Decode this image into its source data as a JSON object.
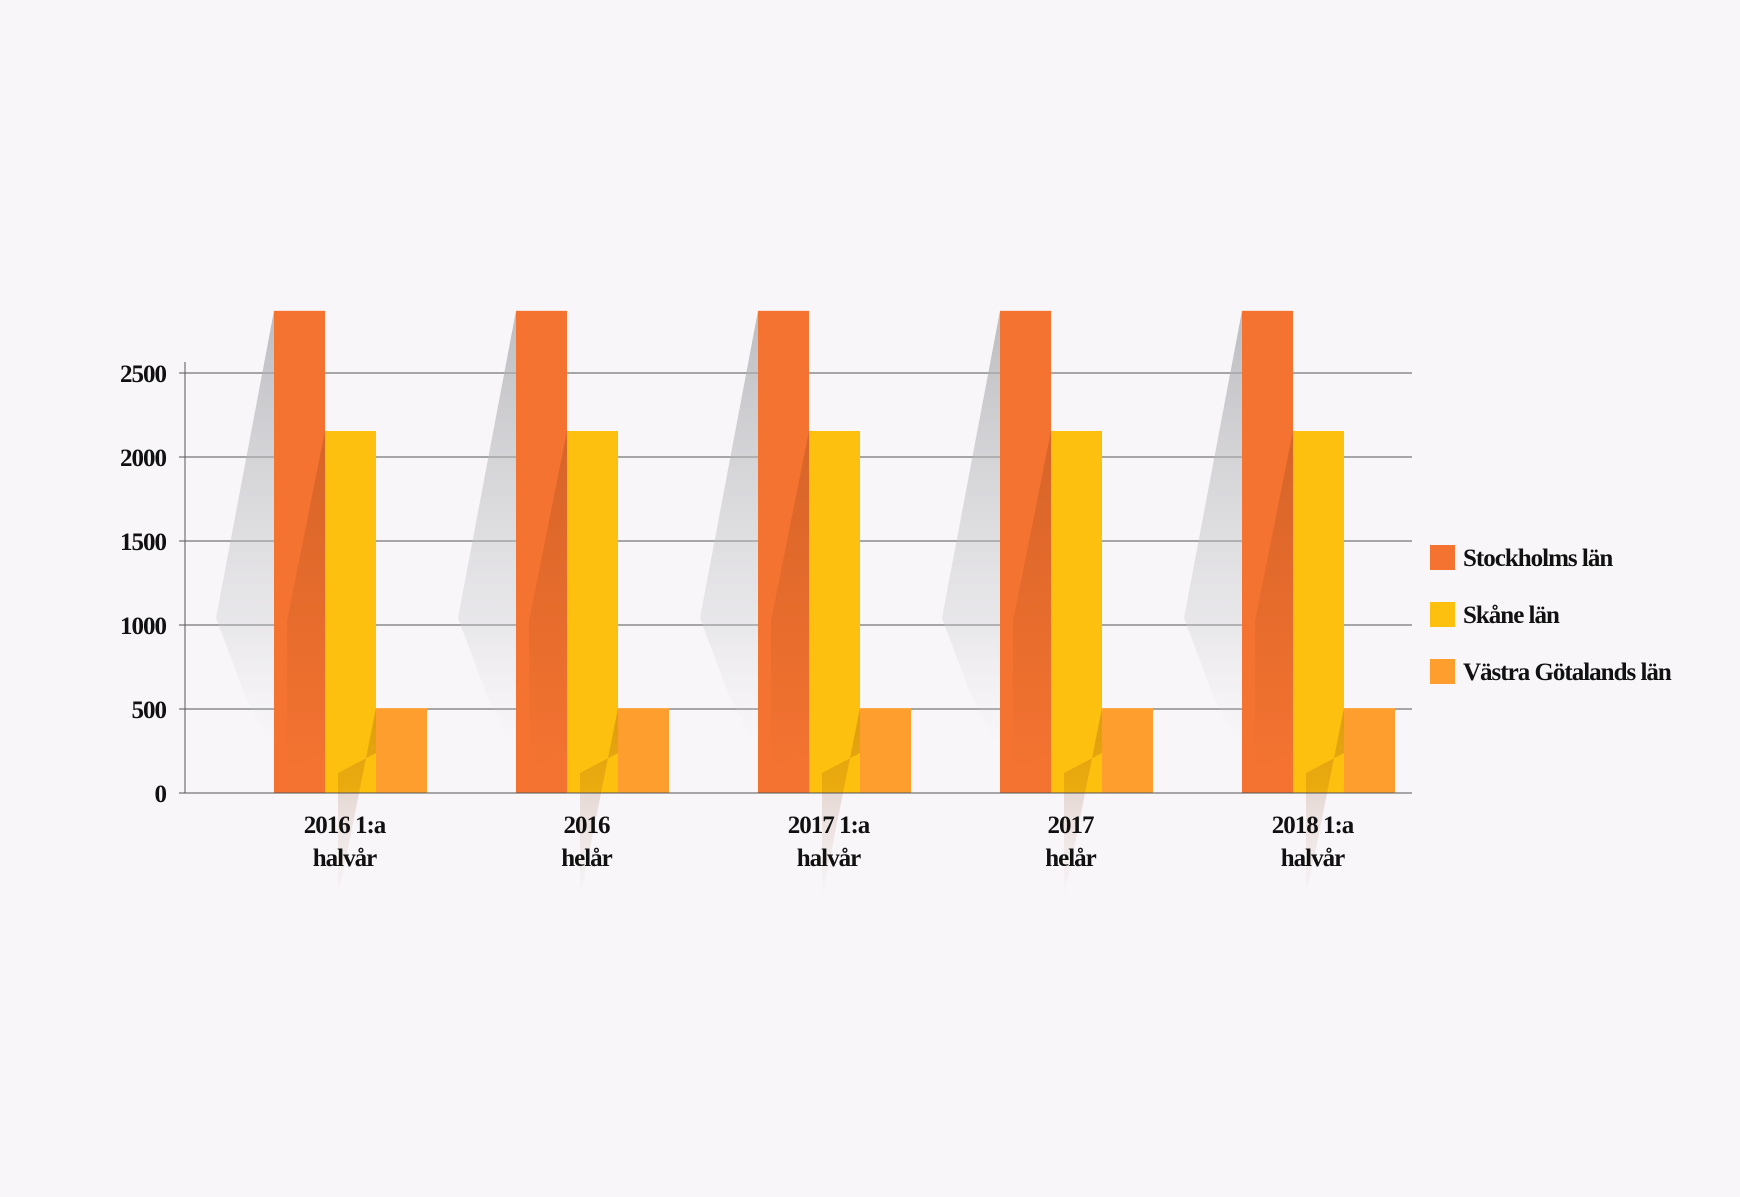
{
  "chart_data": {
    "type": "bar",
    "categories": [
      [
        "2016 1:a",
        "halvår"
      ],
      [
        "2016",
        "helår"
      ],
      [
        "2017 1:a",
        "halvår"
      ],
      [
        "2017",
        "helår"
      ],
      [
        "2018 1:a",
        "halvår"
      ]
    ],
    "series": [
      {
        "name": "Stockholms län",
        "color": "#f47331",
        "values": [
          2870,
          2870,
          2870,
          2870,
          2870
        ]
      },
      {
        "name": "Skåne län",
        "color": "#fdc00f",
        "values": [
          2155,
          2155,
          2155,
          2155,
          2155
        ]
      },
      {
        "name": "Västra Götalands län",
        "color": "#fd9e2e",
        "values": [
          505,
          505,
          505,
          505,
          505
        ]
      }
    ],
    "yticks": [
      "0",
      "500",
      "1000",
      "1500",
      "2000",
      "2500"
    ],
    "ylim": [
      0,
      2500
    ],
    "grid": true,
    "legend_position": "right",
    "title": "",
    "xlabel": "",
    "ylabel": ""
  }
}
